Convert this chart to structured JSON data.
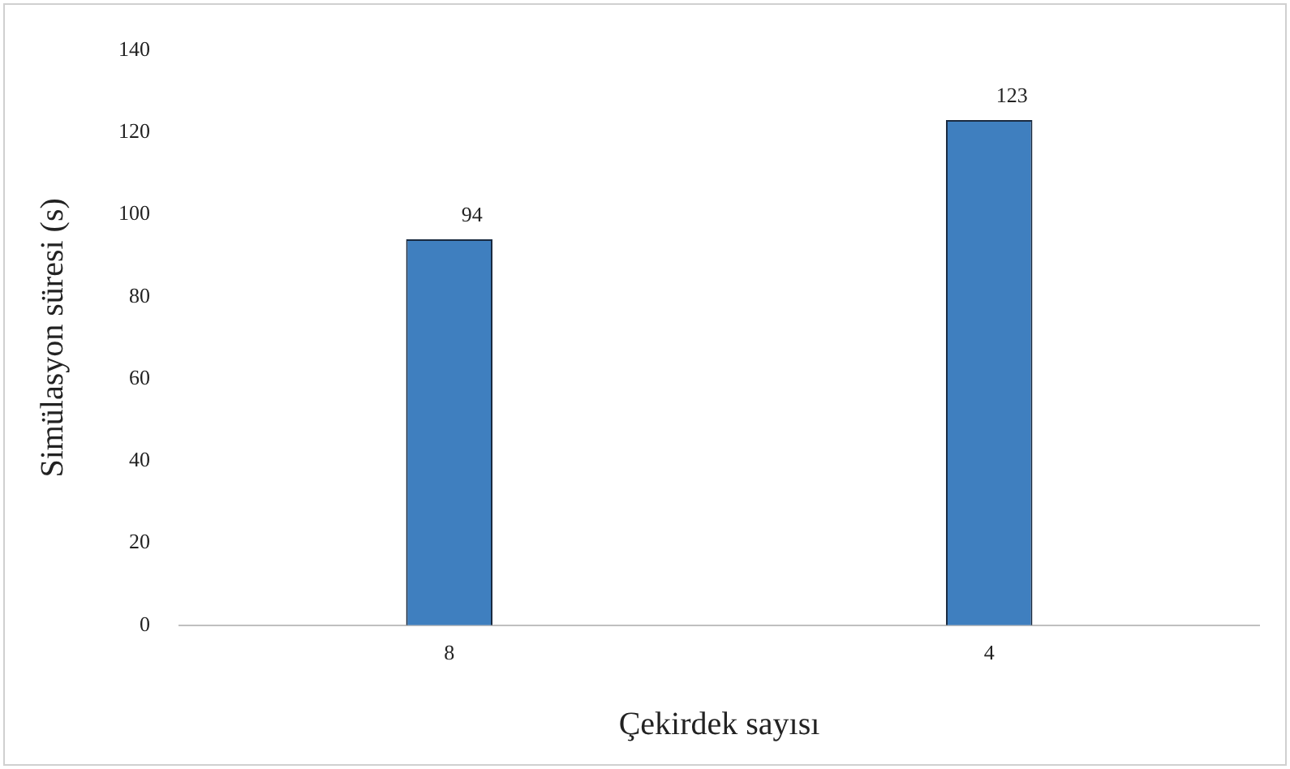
{
  "chart_data": {
    "type": "bar",
    "xlabel": "Çekirdek sayısı",
    "ylabel": "Simülasyon süresi (s)",
    "categories": [
      "8",
      "4"
    ],
    "series": [
      {
        "color": "#3f7fbf",
        "values": [
          94,
          123
        ]
      }
    ],
    "ylim": [
      0,
      140
    ],
    "yticks": [
      0,
      20,
      40,
      60,
      80,
      100,
      120,
      140
    ],
    "grid": false,
    "legend": false,
    "data_labels": true
  }
}
